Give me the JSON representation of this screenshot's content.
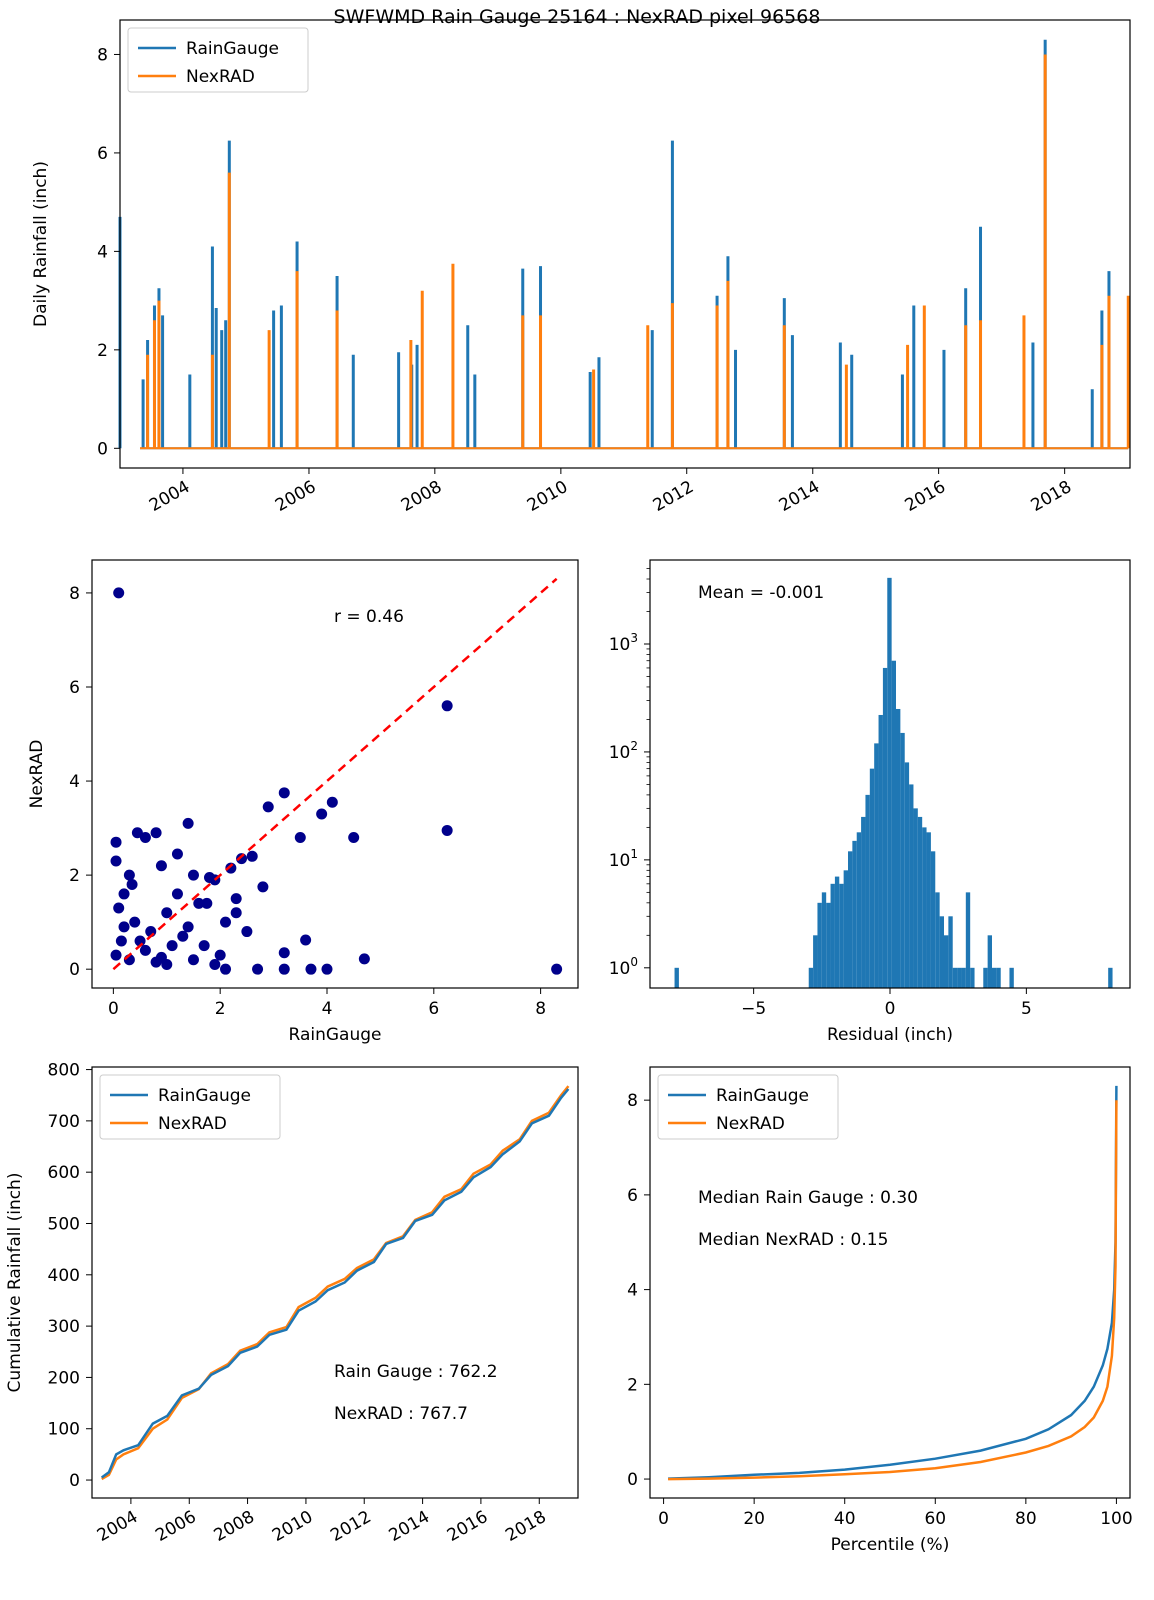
{
  "suptitle": "SWFWMD Rain Gauge 25164 : NexRAD pixel 96568",
  "colors": {
    "raingauge": "#1f77b4",
    "nexrad": "#ff7f0e",
    "scatter": "#00008b",
    "diagonal": "#ff0000",
    "hist": "#1f77b4"
  },
  "chart_data": [
    {
      "type": "line",
      "ylabel": "Daily Rainfall (inch)",
      "xlabel": "",
      "title": "",
      "xlim": [
        "2003-01-01",
        "2019-01-15"
      ],
      "ylim": [
        -0.4,
        8.7
      ],
      "x_ticks": [
        "2004",
        "2006",
        "2008",
        "2010",
        "2012",
        "2014",
        "2016",
        "2018"
      ],
      "y_ticks": [
        0,
        2,
        4,
        6,
        8
      ],
      "legend": {
        "position": "top-left",
        "entries": [
          "RainGauge",
          "NexRAD"
        ]
      },
      "series": [
        {
          "name": "RainGauge",
          "color": "#1f77b4",
          "x": [
            "2003-01-01",
            "2003-05-15",
            "2003-06-10",
            "2003-07-20",
            "2003-08-15",
            "2003-09-05",
            "2004-02-10",
            "2004-06-20",
            "2004-07-12",
            "2004-08-13",
            "2004-09-05",
            "2004-09-26",
            "2005-06-10",
            "2005-07-25",
            "2005-10-24",
            "2006-06-13",
            "2006-09-15",
            "2007-06-05",
            "2007-08-20",
            "2007-09-20",
            "2008-07-10",
            "2008-08-20",
            "2009-05-25",
            "2009-09-05",
            "2010-06-20",
            "2010-08-10",
            "2011-06-15",
            "2011-10-10",
            "2012-06-25",
            "2012-08-27",
            "2012-10-10",
            "2013-07-20",
            "2013-09-05",
            "2014-06-10",
            "2014-08-15",
            "2015-06-05",
            "2015-08-10",
            "2016-02-01",
            "2016-06-06",
            "2016-08-31",
            "2017-07-01",
            "2017-09-10",
            "2018-06-10",
            "2018-08-05",
            "2018-09-15"
          ],
          "y": [
            4.7,
            1.4,
            2.2,
            2.9,
            3.25,
            2.7,
            1.5,
            4.1,
            2.85,
            2.4,
            2.6,
            6.25,
            2.8,
            2.9,
            4.2,
            3.5,
            1.9,
            1.95,
            1.7,
            2.1,
            2.5,
            1.5,
            3.65,
            3.7,
            1.55,
            1.85,
            2.4,
            6.25,
            3.1,
            3.9,
            2.0,
            3.05,
            2.3,
            2.15,
            1.9,
            1.5,
            2.9,
            2.0,
            3.25,
            4.5,
            2.15,
            8.3,
            1.2,
            2.8,
            3.6
          ]
        },
        {
          "name": "NexRAD",
          "color": "#ff7f0e",
          "x": [
            "2003-06-10",
            "2003-07-20",
            "2003-08-15",
            "2004-06-20",
            "2004-09-26",
            "2005-05-15",
            "2005-10-24",
            "2006-06-13",
            "2007-08-15",
            "2007-10-20",
            "2008-04-15",
            "2009-05-25",
            "2009-09-05",
            "2010-07-10",
            "2011-05-20",
            "2011-10-10",
            "2012-06-25",
            "2012-08-27",
            "2013-07-20",
            "2014-07-15",
            "2015-07-05",
            "2015-10-10",
            "2016-06-06",
            "2016-08-31",
            "2017-05-10",
            "2017-09-10",
            "2018-08-05",
            "2018-09-15",
            "2019-01-05"
          ],
          "y": [
            1.9,
            2.6,
            3.0,
            1.9,
            5.6,
            2.4,
            3.6,
            2.8,
            2.2,
            3.2,
            3.75,
            2.7,
            2.7,
            1.6,
            2.5,
            2.95,
            2.9,
            3.4,
            2.5,
            1.7,
            2.1,
            2.9,
            2.5,
            2.6,
            2.7,
            8.0,
            2.1,
            3.1,
            3.1
          ]
        }
      ]
    },
    {
      "type": "scatter",
      "xlabel": "RainGauge",
      "ylabel": "NexRAD",
      "title": "",
      "annotation": "r = 0.46",
      "xlim": [
        -0.4,
        8.7
      ],
      "ylim": [
        -0.4,
        8.7
      ],
      "x_ticks": [
        0,
        2,
        4,
        6,
        8
      ],
      "y_ticks": [
        0,
        2,
        4,
        6,
        8
      ],
      "reference_line": {
        "style": "dashed",
        "color": "#ff0000",
        "from": [
          0,
          0
        ],
        "to": [
          8.3,
          8.3
        ]
      },
      "points": {
        "x": [
          0.1,
          6.25,
          6.25,
          3.2,
          2.9,
          3.5,
          3.9,
          4.5,
          4.1,
          8.3,
          4.7,
          3.6,
          3.2,
          1.4,
          0.45,
          0.6,
          0.8,
          0.05,
          2.4,
          2.2,
          2.3,
          1.8,
          1.6,
          2.6,
          2.8,
          2.3,
          1.9,
          1.5,
          1.2,
          0.9,
          1.0,
          0.3,
          0.2,
          1.75,
          2.1,
          2.5,
          0.1,
          0.4,
          0.7,
          1.3,
          1.1,
          0.05,
          0.15,
          0.3,
          0.6,
          0.9,
          1.7,
          2.0,
          1.0,
          0.2,
          0.5,
          0.8,
          1.5,
          1.9,
          2.7,
          3.7,
          4.0,
          3.2,
          2.1,
          1.4,
          0.35,
          0.05,
          1.2
        ],
        "y": [
          8.0,
          5.6,
          2.95,
          3.75,
          3.45,
          2.8,
          3.3,
          2.8,
          3.55,
          0.0,
          0.22,
          0.62,
          0.35,
          3.1,
          2.9,
          2.8,
          2.9,
          2.7,
          2.35,
          2.15,
          1.5,
          1.95,
          1.4,
          2.4,
          1.75,
          1.2,
          1.9,
          2.0,
          2.45,
          2.2,
          1.2,
          2.0,
          1.6,
          1.4,
          1.0,
          0.8,
          1.3,
          1.0,
          0.8,
          0.7,
          0.5,
          0.3,
          0.6,
          0.2,
          0.4,
          0.25,
          0.5,
          0.3,
          0.1,
          0.9,
          0.6,
          0.15,
          0.2,
          0.1,
          0.0,
          0.0,
          0.0,
          0.0,
          0.0,
          0.9,
          1.8,
          2.3,
          1.6
        ]
      }
    },
    {
      "type": "bar",
      "subtype": "histogram",
      "xlabel": "Residual (inch)",
      "ylabel": "",
      "title": "",
      "annotation": "Mean = -0.001",
      "yscale": "log",
      "xlim": [
        -8.8,
        8.8
      ],
      "ylim": [
        0.65,
        6000
      ],
      "x_ticks": [
        -5,
        0,
        5
      ],
      "y_ticks": [
        "10^0",
        "10^1",
        "10^2",
        "10^3"
      ],
      "bin_width": 0.16,
      "bin_starts": [
        -7.9,
        -2.98,
        -2.82,
        -2.66,
        -2.5,
        -2.34,
        -2.18,
        -2.02,
        -1.86,
        -1.7,
        -1.54,
        -1.38,
        -1.22,
        -1.06,
        -0.9,
        -0.74,
        -0.58,
        -0.42,
        -0.26,
        -0.1,
        0.06,
        0.22,
        0.38,
        0.54,
        0.7,
        0.86,
        1.02,
        1.18,
        1.34,
        1.5,
        1.66,
        1.82,
        1.98,
        2.14,
        2.3,
        2.46,
        2.62,
        2.78,
        2.94,
        3.42,
        3.58,
        3.74,
        3.9,
        4.38,
        8.0
      ],
      "counts": [
        1,
        1,
        2,
        4,
        5,
        4,
        6,
        7,
        6,
        8,
        12,
        15,
        18,
        25,
        40,
        70,
        120,
        220,
        600,
        4100,
        700,
        250,
        150,
        80,
        50,
        30,
        25,
        20,
        18,
        12,
        5,
        3,
        2,
        3,
        1,
        1,
        1,
        5,
        1,
        1,
        2,
        1,
        1,
        1,
        1
      ]
    },
    {
      "type": "line",
      "xlabel": "",
      "ylabel": "Cumulative Rainfall (inch)",
      "title": "",
      "annotations": [
        "Rain Gauge : 762.2",
        "NexRAD : 767.7"
      ],
      "xlim": [
        "2002-09-01",
        "2019-05-01"
      ],
      "ylim": [
        -35,
        805
      ],
      "x_ticks": [
        "2004",
        "2006",
        "2008",
        "2010",
        "2012",
        "2014",
        "2016",
        "2018"
      ],
      "y_ticks": [
        0,
        100,
        200,
        300,
        400,
        500,
        600,
        700,
        800
      ],
      "legend": {
        "position": "top-left",
        "entries": [
          "RainGauge",
          "NexRAD"
        ]
      },
      "series": [
        {
          "name": "RainGauge",
          "color": "#1f77b4",
          "x": [
            "2003-01-01",
            "2003-04-01",
            "2003-07-01",
            "2003-10-01",
            "2004-04-01",
            "2004-10-01",
            "2005-04-01",
            "2005-10-01",
            "2006-05-01",
            "2006-10-01",
            "2007-05-01",
            "2007-10-01",
            "2008-05-01",
            "2008-10-01",
            "2009-05-01",
            "2009-10-01",
            "2010-05-01",
            "2010-10-01",
            "2011-05-01",
            "2011-10-01",
            "2012-05-01",
            "2012-10-01",
            "2013-05-01",
            "2013-10-01",
            "2014-05-01",
            "2014-10-01",
            "2015-05-01",
            "2015-10-01",
            "2016-05-01",
            "2016-10-01",
            "2017-05-01",
            "2017-10-01",
            "2018-05-01",
            "2018-10-01",
            "2019-01-01"
          ],
          "y": [
            5,
            15,
            50,
            58,
            68,
            110,
            125,
            165,
            178,
            205,
            222,
            248,
            260,
            283,
            293,
            330,
            348,
            370,
            385,
            408,
            425,
            460,
            472,
            505,
            517,
            545,
            562,
            590,
            610,
            635,
            660,
            695,
            710,
            745,
            762.2
          ]
        },
        {
          "name": "NexRAD",
          "color": "#ff7f0e",
          "x": [
            "2003-01-01",
            "2003-04-01",
            "2003-07-01",
            "2003-10-01",
            "2004-04-01",
            "2004-10-01",
            "2005-04-01",
            "2005-10-01",
            "2006-05-01",
            "2006-10-01",
            "2007-05-01",
            "2007-10-01",
            "2008-05-01",
            "2008-10-01",
            "2009-05-01",
            "2009-10-01",
            "2010-05-01",
            "2010-10-01",
            "2011-05-01",
            "2011-10-01",
            "2012-05-01",
            "2012-10-01",
            "2013-05-01",
            "2013-10-01",
            "2014-05-01",
            "2014-10-01",
            "2015-05-01",
            "2015-10-01",
            "2016-05-01",
            "2016-10-01",
            "2017-05-01",
            "2017-10-01",
            "2018-05-01",
            "2018-10-01",
            "2019-01-01"
          ],
          "y": [
            2,
            10,
            40,
            50,
            62,
            100,
            118,
            160,
            177,
            208,
            226,
            252,
            265,
            288,
            298,
            337,
            355,
            377,
            392,
            413,
            430,
            462,
            475,
            507,
            522,
            552,
            567,
            597,
            615,
            642,
            664,
            700,
            716,
            750,
            767.7
          ]
        }
      ]
    },
    {
      "type": "line",
      "xlabel": "Percentile (%)",
      "ylabel": "",
      "title": "",
      "annotations": [
        "Median Rain Gauge : 0.30",
        "Median NexRAD : 0.15"
      ],
      "xlim": [
        -3,
        103
      ],
      "ylim": [
        -0.4,
        8.7
      ],
      "x_ticks": [
        0,
        20,
        40,
        60,
        80,
        100
      ],
      "y_ticks": [
        0,
        2,
        4,
        6,
        8
      ],
      "legend": {
        "position": "top-left",
        "entries": [
          "RainGauge",
          "NexRAD"
        ]
      },
      "series": [
        {
          "name": "RainGauge",
          "color": "#1f77b4",
          "x": [
            1,
            10,
            20,
            30,
            40,
            50,
            60,
            70,
            80,
            85,
            90,
            93,
            95,
            97,
            98,
            99,
            99.5,
            99.8,
            100
          ],
          "y": [
            0.01,
            0.04,
            0.09,
            0.13,
            0.2,
            0.3,
            0.43,
            0.6,
            0.85,
            1.05,
            1.35,
            1.65,
            1.95,
            2.4,
            2.75,
            3.3,
            4.0,
            5.0,
            8.3
          ]
        },
        {
          "name": "NexRAD",
          "color": "#ff7f0e",
          "x": [
            1,
            10,
            20,
            30,
            40,
            50,
            60,
            70,
            80,
            85,
            90,
            93,
            95,
            97,
            98,
            99,
            99.5,
            99.8,
            100
          ],
          "y": [
            0.0,
            0.01,
            0.03,
            0.06,
            0.1,
            0.15,
            0.23,
            0.36,
            0.56,
            0.7,
            0.9,
            1.1,
            1.3,
            1.65,
            1.95,
            2.6,
            3.4,
            4.5,
            8.0
          ]
        }
      ]
    }
  ]
}
